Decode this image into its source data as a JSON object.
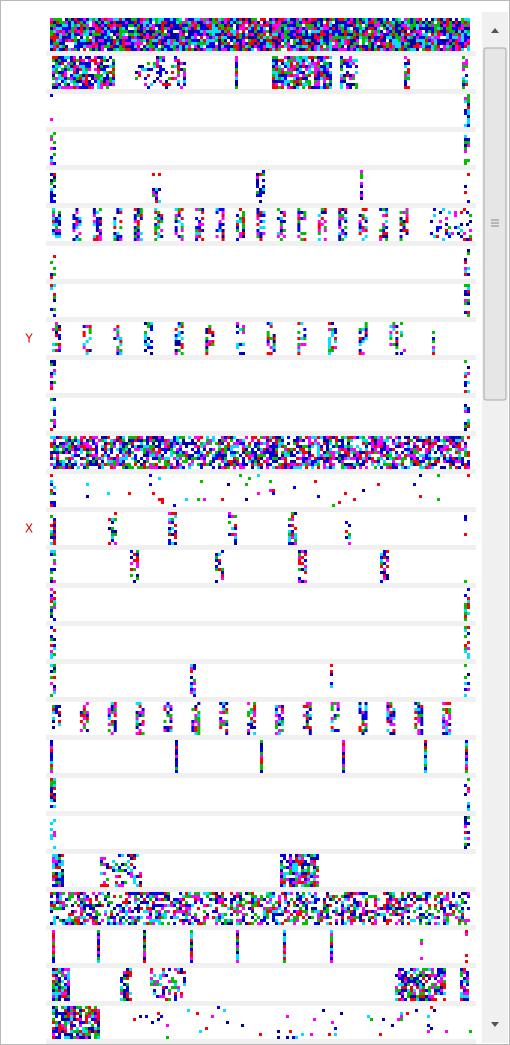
{
  "row_labels": [
    "Y",
    "X"
  ]
}
